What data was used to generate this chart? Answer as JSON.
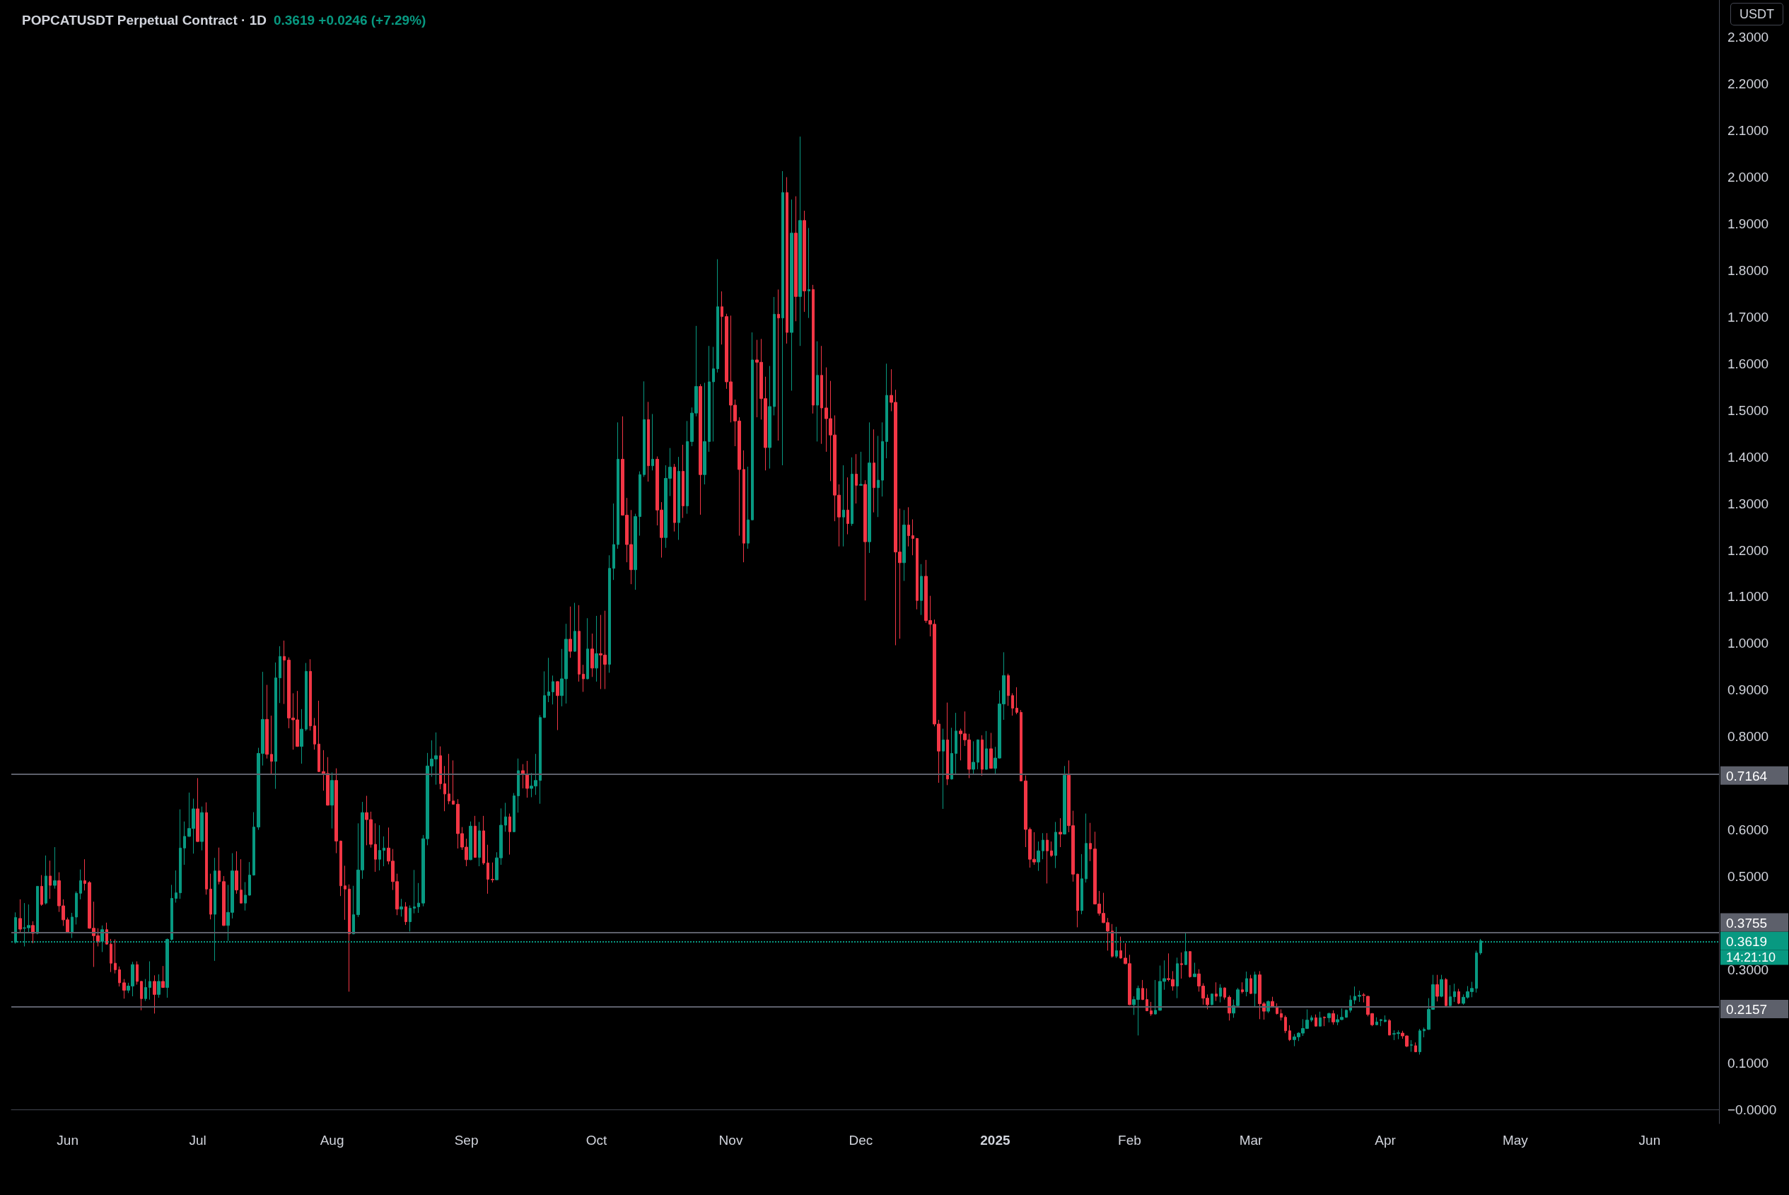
{
  "chart_data": {
    "type": "candlestick",
    "title": "POPCATUSDT Perpetual Contract · 1D",
    "subtitle": "0.3619 +0.0246 (+7.29%)",
    "ylabel": "USDT",
    "annotations": [
      "14:21:10"
    ],
    "xlim": [
      "2024-05-19",
      "2025-06-17"
    ],
    "xticks": [
      {
        "value": "2024-06-01",
        "label": "Jun"
      },
      {
        "value": "2024-07-01",
        "label": "Jul"
      },
      {
        "value": "2024-08-01",
        "label": "Aug"
      },
      {
        "value": "2024-09-01",
        "label": "Sep"
      },
      {
        "value": "2024-10-01",
        "label": "Oct"
      },
      {
        "value": "2024-11-01",
        "label": "Nov"
      },
      {
        "value": "2024-12-01",
        "label": "Dec"
      },
      {
        "value": "2025-01-01",
        "label": "2025"
      },
      {
        "value": "2025-02-01",
        "label": "Feb"
      },
      {
        "value": "2025-03-01",
        "label": "Mar"
      },
      {
        "value": "2025-04-01",
        "label": "Apr"
      },
      {
        "value": "2025-05-01",
        "label": "May"
      },
      {
        "value": "2025-06-01",
        "label": "Jun"
      }
    ],
    "ylim": [
      -0.03,
      2.38
    ],
    "yticks": [
      {
        "value": 0,
        "label": "−0.0000"
      },
      {
        "value": 0.1,
        "label": "0.1000"
      },
      {
        "value": 0.3,
        "label": "0.3000"
      },
      {
        "value": 0.5,
        "label": "0.5000"
      },
      {
        "value": 0.6,
        "label": "0.6000"
      },
      {
        "value": 0.8,
        "label": "0.8000"
      },
      {
        "value": 0.9,
        "label": "0.9000"
      },
      {
        "value": 1,
        "label": "1.0000"
      },
      {
        "value": 1.1,
        "label": "1.1000"
      },
      {
        "value": 1.2,
        "label": "1.2000"
      },
      {
        "value": 1.3,
        "label": "1.3000"
      },
      {
        "value": 1.4,
        "label": "1.4000"
      },
      {
        "value": 1.5,
        "label": "1.5000"
      },
      {
        "value": 1.6,
        "label": "1.6000"
      },
      {
        "value": 1.7,
        "label": "1.7000"
      },
      {
        "value": 1.8,
        "label": "1.8000"
      },
      {
        "value": 1.9,
        "label": "1.9000"
      },
      {
        "value": 2,
        "label": "2.0000"
      },
      {
        "value": 2.1,
        "label": "2.1000"
      },
      {
        "value": 2.2,
        "label": "2.2000"
      },
      {
        "value": 2.3,
        "label": "2.3000"
      }
    ],
    "ref_lines": [
      {
        "axis": "y",
        "value": 0.7164,
        "label": "0.7164",
        "color": "#5d606b",
        "line_style": "solid"
      },
      {
        "axis": "y",
        "value": 0.2157,
        "label": "0.2157",
        "color": "#5d606b",
        "line_style": "solid"
      },
      {
        "axis": "y",
        "value": 0.3755,
        "label": "0.3755",
        "color": "#5d606b",
        "line_style": "solid"
      },
      {
        "axis": "y",
        "value": 0.3619,
        "label": "0.3619",
        "color": "#089981",
        "line_style": "dotted"
      }
    ],
    "x": [
      "2024-05-20",
      "2024-05-21",
      "2024-05-22",
      "2024-05-23",
      "2024-05-24",
      "2024-05-25",
      "2024-05-26",
      "2024-05-27",
      "2024-05-28",
      "2024-05-29",
      "2024-05-30",
      "2024-05-31",
      "2024-06-01",
      "2024-06-02",
      "2024-06-03",
      "2024-06-04",
      "2024-06-05",
      "2024-06-06",
      "2024-06-07",
      "2024-06-08",
      "2024-06-09",
      "2024-06-10",
      "2024-06-11",
      "2024-06-12",
      "2024-06-13",
      "2024-06-14",
      "2024-06-15",
      "2024-06-16",
      "2024-06-17",
      "2024-06-18",
      "2024-06-19",
      "2024-06-20",
      "2024-06-21",
      "2024-06-22",
      "2024-06-23",
      "2024-06-24",
      "2024-06-25",
      "2024-06-26",
      "2024-06-27",
      "2024-06-28",
      "2024-06-29",
      "2024-06-30",
      "2024-07-01",
      "2024-07-02",
      "2024-07-03",
      "2024-07-04",
      "2024-07-05",
      "2024-07-06",
      "2024-07-07",
      "2024-07-08",
      "2024-07-09",
      "2024-07-10",
      "2024-07-11",
      "2024-07-12",
      "2024-07-13",
      "2024-07-14",
      "2024-07-15",
      "2024-07-16",
      "2024-07-17",
      "2024-07-18",
      "2024-07-19",
      "2024-07-20",
      "2024-07-21",
      "2024-07-22",
      "2024-07-23",
      "2024-07-24",
      "2024-07-25",
      "2024-07-26",
      "2024-07-27",
      "2024-07-28",
      "2024-07-29",
      "2024-07-30",
      "2024-07-31",
      "2024-08-01",
      "2024-08-02",
      "2024-08-03",
      "2024-08-04",
      "2024-08-05",
      "2024-08-06",
      "2024-08-07",
      "2024-08-08",
      "2024-08-09",
      "2024-08-10",
      "2024-08-11",
      "2024-08-12",
      "2024-08-13",
      "2024-08-14",
      "2024-08-15",
      "2024-08-16",
      "2024-08-17",
      "2024-08-18",
      "2024-08-19",
      "2024-08-20",
      "2024-08-21",
      "2024-08-22",
      "2024-08-23",
      "2024-08-24",
      "2024-08-25",
      "2024-08-26",
      "2024-08-27",
      "2024-08-28",
      "2024-08-29",
      "2024-08-30",
      "2024-08-31",
      "2024-09-01",
      "2024-09-02",
      "2024-09-03",
      "2024-09-04",
      "2024-09-05",
      "2024-09-06",
      "2024-09-07",
      "2024-09-08",
      "2024-09-09",
      "2024-09-10",
      "2024-09-11",
      "2024-09-12",
      "2024-09-13",
      "2024-09-14",
      "2024-09-15",
      "2024-09-16",
      "2024-09-17",
      "2024-09-18",
      "2024-09-19",
      "2024-09-20",
      "2024-09-21",
      "2024-09-22",
      "2024-09-23",
      "2024-09-24",
      "2024-09-25",
      "2024-09-26",
      "2024-09-27",
      "2024-09-28",
      "2024-09-29",
      "2024-09-30",
      "2024-10-01",
      "2024-10-02",
      "2024-10-03",
      "2024-10-04",
      "2024-10-05",
      "2024-10-06",
      "2024-10-07",
      "2024-10-08",
      "2024-10-09",
      "2024-10-10",
      "2024-10-11",
      "2024-10-12",
      "2024-10-13",
      "2024-10-14",
      "2024-10-15",
      "2024-10-16",
      "2024-10-17",
      "2024-10-18",
      "2024-10-19",
      "2024-10-20",
      "2024-10-21",
      "2024-10-22",
      "2024-10-23",
      "2024-10-24",
      "2024-10-25",
      "2024-10-26",
      "2024-10-27",
      "2024-10-28",
      "2024-10-29",
      "2024-10-30",
      "2024-10-31",
      "2024-11-01",
      "2024-11-02",
      "2024-11-03",
      "2024-11-04",
      "2024-11-05",
      "2024-11-06",
      "2024-11-07",
      "2024-11-08",
      "2024-11-09",
      "2024-11-10",
      "2024-11-11",
      "2024-11-12",
      "2024-11-13",
      "2024-11-14",
      "2024-11-15",
      "2024-11-16",
      "2024-11-17",
      "2024-11-18",
      "2024-11-19",
      "2024-11-20",
      "2024-11-21",
      "2024-11-22",
      "2024-11-23",
      "2024-11-24",
      "2024-11-25",
      "2024-11-26",
      "2024-11-27",
      "2024-11-28",
      "2024-11-29",
      "2024-11-30",
      "2024-12-01",
      "2024-12-02",
      "2024-12-03",
      "2024-12-04",
      "2024-12-05",
      "2024-12-06",
      "2024-12-07",
      "2024-12-08",
      "2024-12-09",
      "2024-12-10",
      "2024-12-11",
      "2024-12-12",
      "2024-12-13",
      "2024-12-14",
      "2024-12-15",
      "2024-12-16",
      "2024-12-17",
      "2024-12-18",
      "2024-12-19",
      "2024-12-20",
      "2024-12-21",
      "2024-12-22",
      "2024-12-23",
      "2024-12-24",
      "2024-12-25",
      "2024-12-26",
      "2024-12-27",
      "2024-12-28",
      "2024-12-29",
      "2024-12-30",
      "2024-12-31",
      "2025-01-01",
      "2025-01-02",
      "2025-01-03",
      "2025-01-04",
      "2025-01-05",
      "2025-01-06",
      "2025-01-07",
      "2025-01-08",
      "2025-01-09",
      "2025-01-10",
      "2025-01-11",
      "2025-01-12",
      "2025-01-13",
      "2025-01-14",
      "2025-01-15",
      "2025-01-16",
      "2025-01-17",
      "2025-01-18",
      "2025-01-19",
      "2025-01-20",
      "2025-01-21",
      "2025-01-22",
      "2025-01-23",
      "2025-01-24",
      "2025-01-25",
      "2025-01-26",
      "2025-01-27",
      "2025-01-28",
      "2025-01-29",
      "2025-01-30",
      "2025-01-31",
      "2025-02-01",
      "2025-02-02",
      "2025-02-03",
      "2025-02-04",
      "2025-02-05",
      "2025-02-06",
      "2025-02-07",
      "2025-02-08",
      "2025-02-09",
      "2025-02-10",
      "2025-02-11",
      "2025-02-12",
      "2025-02-13",
      "2025-02-14",
      "2025-02-15",
      "2025-02-16",
      "2025-02-17",
      "2025-02-18",
      "2025-02-19",
      "2025-02-20",
      "2025-02-21",
      "2025-02-22",
      "2025-02-23",
      "2025-02-24",
      "2025-02-25",
      "2025-02-26",
      "2025-02-27",
      "2025-02-28",
      "2025-03-01",
      "2025-03-02",
      "2025-03-03",
      "2025-03-04",
      "2025-03-05",
      "2025-03-06",
      "2025-03-07",
      "2025-03-08",
      "2025-03-09",
      "2025-03-10",
      "2025-03-11",
      "2025-03-12",
      "2025-03-13",
      "2025-03-14",
      "2025-03-15",
      "2025-03-16",
      "2025-03-17",
      "2025-03-18",
      "2025-03-19",
      "2025-03-20",
      "2025-03-21",
      "2025-03-22",
      "2025-03-23",
      "2025-03-24",
      "2025-03-25",
      "2025-03-26",
      "2025-03-27",
      "2025-03-28",
      "2025-03-29",
      "2025-03-30",
      "2025-03-31",
      "2025-04-01",
      "2025-04-02",
      "2025-04-03",
      "2025-04-04",
      "2025-04-05",
      "2025-04-06",
      "2025-04-07",
      "2025-04-08",
      "2025-04-09",
      "2025-04-10",
      "2025-04-11",
      "2025-04-12",
      "2025-04-13",
      "2025-04-14",
      "2025-04-15",
      "2025-04-16",
      "2025-04-17",
      "2025-04-18",
      "2025-04-19",
      "2025-04-20",
      "2025-04-21",
      "2025-04-22",
      "2025-04-23"
    ],
    "ohlc": [
      [
        0.359,
        0.423,
        0.356,
        0.412
      ],
      [
        0.41,
        0.451,
        0.378,
        0.387
      ],
      [
        0.389,
        0.443,
        0.35,
        0.39
      ],
      [
        0.39,
        0.44,
        0.378,
        0.395
      ],
      [
        0.395,
        0.404,
        0.357,
        0.378
      ],
      [
        0.378,
        0.479,
        0.376,
        0.479
      ],
      [
        0.479,
        0.503,
        0.437,
        0.44
      ],
      [
        0.443,
        0.545,
        0.44,
        0.501
      ],
      [
        0.501,
        0.534,
        0.452,
        0.481
      ],
      [
        0.481,
        0.563,
        0.474,
        0.491
      ],
      [
        0.491,
        0.509,
        0.424,
        0.437
      ],
      [
        0.437,
        0.451,
        0.394,
        0.407
      ],
      [
        0.407,
        0.412,
        0.379,
        0.38
      ],
      [
        0.38,
        0.422,
        0.368,
        0.413
      ],
      [
        0.413,
        0.468,
        0.397,
        0.464
      ],
      [
        0.464,
        0.515,
        0.451,
        0.491
      ],
      [
        0.491,
        0.537,
        0.47,
        0.485
      ],
      [
        0.487,
        0.49,
        0.388,
        0.389
      ],
      [
        0.389,
        0.446,
        0.306,
        0.373
      ],
      [
        0.373,
        0.389,
        0.35,
        0.361
      ],
      [
        0.361,
        0.395,
        0.338,
        0.386
      ],
      [
        0.386,
        0.401,
        0.354,
        0.355
      ],
      [
        0.355,
        0.366,
        0.295,
        0.314
      ],
      [
        0.314,
        0.365,
        0.292,
        0.3
      ],
      [
        0.3,
        0.307,
        0.264,
        0.272
      ],
      [
        0.272,
        0.28,
        0.238,
        0.256
      ],
      [
        0.256,
        0.272,
        0.25,
        0.265
      ],
      [
        0.265,
        0.317,
        0.243,
        0.311
      ],
      [
        0.311,
        0.318,
        0.268,
        0.275
      ],
      [
        0.275,
        0.276,
        0.213,
        0.238
      ],
      [
        0.238,
        0.28,
        0.233,
        0.262
      ],
      [
        0.262,
        0.318,
        0.236,
        0.275
      ],
      [
        0.275,
        0.288,
        0.206,
        0.247
      ],
      [
        0.247,
        0.29,
        0.24,
        0.275
      ],
      [
        0.275,
        0.308,
        0.261,
        0.262
      ],
      [
        0.262,
        0.367,
        0.24,
        0.365
      ],
      [
        0.365,
        0.482,
        0.363,
        0.453
      ],
      [
        0.453,
        0.513,
        0.444,
        0.465
      ],
      [
        0.465,
        0.644,
        0.452,
        0.561
      ],
      [
        0.561,
        0.618,
        0.525,
        0.586
      ],
      [
        0.586,
        0.68,
        0.585,
        0.603
      ],
      [
        0.603,
        0.667,
        0.549,
        0.645
      ],
      [
        0.645,
        0.711,
        0.574,
        0.575
      ],
      [
        0.575,
        0.65,
        0.556,
        0.637
      ],
      [
        0.637,
        0.659,
        0.461,
        0.473
      ],
      [
        0.473,
        0.506,
        0.408,
        0.419
      ],
      [
        0.419,
        0.54,
        0.319,
        0.512
      ],
      [
        0.512,
        0.562,
        0.483,
        0.489
      ],
      [
        0.489,
        0.501,
        0.394,
        0.395
      ],
      [
        0.395,
        0.482,
        0.362,
        0.423
      ],
      [
        0.423,
        0.55,
        0.41,
        0.512
      ],
      [
        0.512,
        0.554,
        0.463,
        0.471
      ],
      [
        0.471,
        0.537,
        0.442,
        0.443
      ],
      [
        0.443,
        0.488,
        0.427,
        0.46
      ],
      [
        0.46,
        0.531,
        0.459,
        0.503
      ],
      [
        0.503,
        0.638,
        0.502,
        0.606
      ],
      [
        0.606,
        0.776,
        0.6,
        0.764
      ],
      [
        0.764,
        0.939,
        0.738,
        0.837
      ],
      [
        0.837,
        0.911,
        0.753,
        0.762
      ],
      [
        0.762,
        0.845,
        0.718,
        0.747
      ],
      [
        0.747,
        0.959,
        0.688,
        0.926
      ],
      [
        0.926,
        0.994,
        0.872,
        0.972
      ],
      [
        0.972,
        1.006,
        0.87,
        0.964
      ],
      [
        0.964,
        0.97,
        0.818,
        0.84
      ],
      [
        0.84,
        0.893,
        0.772,
        0.836
      ],
      [
        0.836,
        0.898,
        0.778,
        0.779
      ],
      [
        0.779,
        0.859,
        0.742,
        0.816
      ],
      [
        0.816,
        0.958,
        0.812,
        0.94
      ],
      [
        0.94,
        0.966,
        0.813,
        0.823
      ],
      [
        0.823,
        0.84,
        0.772,
        0.784
      ],
      [
        0.784,
        0.877,
        0.724,
        0.725
      ],
      [
        0.725,
        0.771,
        0.684,
        0.721
      ],
      [
        0.721,
        0.756,
        0.652,
        0.653
      ],
      [
        0.653,
        0.723,
        0.603,
        0.706
      ],
      [
        0.706,
        0.732,
        0.55,
        0.576
      ],
      [
        0.576,
        0.577,
        0.458,
        0.48
      ],
      [
        0.48,
        0.523,
        0.407,
        0.473
      ],
      [
        0.473,
        0.483,
        0.253,
        0.377
      ],
      [
        0.377,
        0.48,
        0.376,
        0.418
      ],
      [
        0.418,
        0.614,
        0.413,
        0.514
      ],
      [
        0.514,
        0.66,
        0.495,
        0.637
      ],
      [
        0.637,
        0.673,
        0.567,
        0.622
      ],
      [
        0.622,
        0.639,
        0.562,
        0.569
      ],
      [
        0.569,
        0.614,
        0.51,
        0.537
      ],
      [
        0.537,
        0.61,
        0.513,
        0.556
      ],
      [
        0.556,
        0.586,
        0.522,
        0.561
      ],
      [
        0.561,
        0.605,
        0.526,
        0.533
      ],
      [
        0.533,
        0.559,
        0.471,
        0.489
      ],
      [
        0.489,
        0.506,
        0.417,
        0.43
      ],
      [
        0.43,
        0.452,
        0.414,
        0.435
      ],
      [
        0.435,
        0.445,
        0.396,
        0.403
      ],
      [
        0.403,
        0.438,
        0.382,
        0.432
      ],
      [
        0.432,
        0.514,
        0.421,
        0.435
      ],
      [
        0.435,
        0.486,
        0.422,
        0.443
      ],
      [
        0.443,
        0.589,
        0.436,
        0.581
      ],
      [
        0.581,
        0.765,
        0.567,
        0.737
      ],
      [
        0.737,
        0.792,
        0.714,
        0.752
      ],
      [
        0.752,
        0.809,
        0.697,
        0.759
      ],
      [
        0.759,
        0.779,
        0.687,
        0.699
      ],
      [
        0.699,
        0.737,
        0.64,
        0.677
      ],
      [
        0.677,
        0.763,
        0.655,
        0.662
      ],
      [
        0.662,
        0.749,
        0.654,
        0.655
      ],
      [
        0.655,
        0.666,
        0.56,
        0.592
      ],
      [
        0.592,
        0.606,
        0.557,
        0.563
      ],
      [
        0.563,
        0.581,
        0.522,
        0.536
      ],
      [
        0.536,
        0.618,
        0.535,
        0.608
      ],
      [
        0.608,
        0.63,
        0.54,
        0.541
      ],
      [
        0.541,
        0.617,
        0.522,
        0.598
      ],
      [
        0.598,
        0.63,
        0.525,
        0.529
      ],
      [
        0.529,
        0.568,
        0.463,
        0.494
      ],
      [
        0.494,
        0.53,
        0.487,
        0.493
      ],
      [
        0.493,
        0.552,
        0.492,
        0.54
      ],
      [
        0.54,
        0.646,
        0.525,
        0.61
      ],
      [
        0.61,
        0.658,
        0.596,
        0.628
      ],
      [
        0.628,
        0.635,
        0.547,
        0.596
      ],
      [
        0.596,
        0.679,
        0.595,
        0.673
      ],
      [
        0.673,
        0.753,
        0.637,
        0.727
      ],
      [
        0.727,
        0.741,
        0.689,
        0.72
      ],
      [
        0.72,
        0.748,
        0.669,
        0.689
      ],
      [
        0.689,
        0.722,
        0.67,
        0.694
      ],
      [
        0.694,
        0.763,
        0.675,
        0.706
      ],
      [
        0.706,
        0.846,
        0.656,
        0.841
      ],
      [
        0.841,
        0.94,
        0.84,
        0.888
      ],
      [
        0.888,
        0.969,
        0.874,
        0.896
      ],
      [
        0.896,
        0.931,
        0.869,
        0.918
      ],
      [
        0.918,
        0.919,
        0.814,
        0.888
      ],
      [
        0.888,
        0.988,
        0.865,
        0.924
      ],
      [
        0.924,
        1.042,
        0.871,
        1.009
      ],
      [
        1.009,
        1.079,
        0.969,
        0.983
      ],
      [
        0.983,
        1.087,
        0.982,
        1.026
      ],
      [
        1.026,
        1.082,
        0.918,
        0.934
      ],
      [
        0.934,
        0.954,
        0.896,
        0.924
      ],
      [
        0.924,
        1.054,
        0.923,
        0.988
      ],
      [
        0.988,
        1.021,
        0.928,
        0.947
      ],
      [
        0.947,
        1.059,
        0.918,
        0.978
      ],
      [
        0.978,
        1.061,
        0.902,
        0.975
      ],
      [
        0.975,
        1.07,
        0.902,
        0.955
      ],
      [
        0.955,
        1.189,
        0.937,
        1.161
      ],
      [
        1.161,
        1.3,
        1.136,
        1.212
      ],
      [
        1.212,
        1.474,
        1.203,
        1.395
      ],
      [
        1.395,
        1.487,
        1.274,
        1.275
      ],
      [
        1.275,
        1.312,
        1.174,
        1.212
      ],
      [
        1.212,
        1.286,
        1.127,
        1.158
      ],
      [
        1.158,
        1.278,
        1.115,
        1.272
      ],
      [
        1.272,
        1.369,
        1.231,
        1.362
      ],
      [
        1.362,
        1.562,
        1.357,
        1.48
      ],
      [
        1.48,
        1.518,
        1.347,
        1.381
      ],
      [
        1.381,
        1.492,
        1.371,
        1.395
      ],
      [
        1.395,
        1.401,
        1.253,
        1.286
      ],
      [
        1.286,
        1.303,
        1.184,
        1.227
      ],
      [
        1.227,
        1.382,
        1.205,
        1.354
      ],
      [
        1.354,
        1.419,
        1.316,
        1.378
      ],
      [
        1.378,
        1.385,
        1.24,
        1.259
      ],
      [
        1.259,
        1.4,
        1.222,
        1.369
      ],
      [
        1.369,
        1.426,
        1.269,
        1.295
      ],
      [
        1.295,
        1.477,
        1.278,
        1.433
      ],
      [
        1.433,
        1.506,
        1.423,
        1.494
      ],
      [
        1.494,
        1.681,
        1.487,
        1.551
      ],
      [
        1.551,
        1.556,
        1.276,
        1.362
      ],
      [
        1.362,
        1.559,
        1.341,
        1.433
      ],
      [
        1.433,
        1.638,
        1.411,
        1.561
      ],
      [
        1.561,
        1.636,
        1.433,
        1.589
      ],
      [
        1.589,
        1.824,
        1.581,
        1.722
      ],
      [
        1.722,
        1.755,
        1.641,
        1.701
      ],
      [
        1.701,
        1.707,
        1.546,
        1.561
      ],
      [
        1.561,
        1.703,
        1.474,
        1.511
      ],
      [
        1.511,
        1.523,
        1.423,
        1.477
      ],
      [
        1.477,
        1.485,
        1.231,
        1.373
      ],
      [
        1.373,
        1.414,
        1.174,
        1.215
      ],
      [
        1.215,
        1.379,
        1.203,
        1.265
      ],
      [
        1.265,
        1.667,
        1.264,
        1.608
      ],
      [
        1.608,
        1.651,
        1.485,
        1.603
      ],
      [
        1.603,
        1.653,
        1.48,
        1.525
      ],
      [
        1.525,
        1.572,
        1.371,
        1.42
      ],
      [
        1.42,
        1.595,
        1.375,
        1.508
      ],
      [
        1.508,
        1.743,
        1.489,
        1.706
      ],
      [
        1.706,
        1.759,
        1.435,
        1.698
      ],
      [
        1.698,
        2.013,
        1.382,
        1.967
      ],
      [
        1.967,
        2.0,
        1.643,
        1.667
      ],
      [
        1.667,
        1.952,
        1.542,
        1.88
      ],
      [
        1.88,
        1.959,
        1.691,
        1.744
      ],
      [
        1.744,
        2.087,
        1.638,
        1.907
      ],
      [
        1.907,
        1.928,
        1.711,
        1.756
      ],
      [
        1.756,
        1.891,
        1.698,
        1.759
      ],
      [
        1.759,
        1.769,
        1.493,
        1.511
      ],
      [
        1.511,
        1.648,
        1.433,
        1.575
      ],
      [
        1.575,
        1.638,
        1.428,
        1.505
      ],
      [
        1.505,
        1.592,
        1.411,
        1.482
      ],
      [
        1.482,
        1.563,
        1.348,
        1.447
      ],
      [
        1.447,
        1.489,
        1.262,
        1.318
      ],
      [
        1.318,
        1.341,
        1.208,
        1.271
      ],
      [
        1.271,
        1.382,
        1.208,
        1.286
      ],
      [
        1.286,
        1.356,
        1.234,
        1.257
      ],
      [
        1.257,
        1.399,
        1.252,
        1.363
      ],
      [
        1.363,
        1.406,
        1.3,
        1.339
      ],
      [
        1.339,
        1.411,
        1.339,
        1.341
      ],
      [
        1.341,
        1.35,
        1.092,
        1.218
      ],
      [
        1.218,
        1.474,
        1.194,
        1.387
      ],
      [
        1.387,
        1.459,
        1.281,
        1.334
      ],
      [
        1.334,
        1.445,
        1.271,
        1.35
      ],
      [
        1.35,
        1.474,
        1.315,
        1.433
      ],
      [
        1.433,
        1.6,
        1.397,
        1.532
      ],
      [
        1.532,
        1.588,
        1.498,
        1.517
      ],
      [
        1.517,
        1.544,
        0.996,
        1.196
      ],
      [
        1.196,
        1.289,
        1.01,
        1.173
      ],
      [
        1.173,
        1.286,
        1.134,
        1.254
      ],
      [
        1.254,
        1.292,
        1.208,
        1.231
      ],
      [
        1.231,
        1.266,
        1.189,
        1.225
      ],
      [
        1.225,
        1.226,
        1.073,
        1.092
      ],
      [
        1.092,
        1.17,
        1.061,
        1.144
      ],
      [
        1.144,
        1.179,
        1.044,
        1.049
      ],
      [
        1.049,
        1.102,
        1.015,
        1.041
      ],
      [
        1.041,
        1.051,
        0.822,
        0.827
      ],
      [
        0.827,
        0.836,
        0.701,
        0.769
      ],
      [
        0.769,
        0.817,
        0.645,
        0.793
      ],
      [
        0.793,
        0.873,
        0.696,
        0.709
      ],
      [
        0.709,
        0.819,
        0.708,
        0.764
      ],
      [
        0.764,
        0.851,
        0.72,
        0.812
      ],
      [
        0.812,
        0.817,
        0.749,
        0.806
      ],
      [
        0.806,
        0.854,
        0.78,
        0.793
      ],
      [
        0.793,
        0.806,
        0.711,
        0.73
      ],
      [
        0.73,
        0.79,
        0.72,
        0.745
      ],
      [
        0.745,
        0.794,
        0.73,
        0.793
      ],
      [
        0.793,
        0.803,
        0.716,
        0.73
      ],
      [
        0.73,
        0.812,
        0.729,
        0.774
      ],
      [
        0.774,
        0.808,
        0.731,
        0.732
      ],
      [
        0.732,
        0.778,
        0.72,
        0.754
      ],
      [
        0.754,
        0.899,
        0.753,
        0.87
      ],
      [
        0.87,
        0.981,
        0.836,
        0.931
      ],
      [
        0.931,
        0.935,
        0.866,
        0.888
      ],
      [
        0.888,
        0.893,
        0.845,
        0.861
      ],
      [
        0.861,
        0.906,
        0.848,
        0.852
      ],
      [
        0.852,
        0.857,
        0.704,
        0.705
      ],
      [
        0.705,
        0.717,
        0.563,
        0.601
      ],
      [
        0.601,
        0.605,
        0.519,
        0.537
      ],
      [
        0.537,
        0.595,
        0.525,
        0.531
      ],
      [
        0.531,
        0.575,
        0.512,
        0.555
      ],
      [
        0.555,
        0.593,
        0.537,
        0.578
      ],
      [
        0.578,
        0.593,
        0.485,
        0.555
      ],
      [
        0.555,
        0.575,
        0.542,
        0.545
      ],
      [
        0.545,
        0.617,
        0.518,
        0.595
      ],
      [
        0.595,
        0.625,
        0.563,
        0.591
      ],
      [
        0.591,
        0.737,
        0.59,
        0.717
      ],
      [
        0.717,
        0.749,
        0.595,
        0.609
      ],
      [
        0.609,
        0.641,
        0.489,
        0.505
      ],
      [
        0.505,
        0.506,
        0.391,
        0.427
      ],
      [
        0.427,
        0.548,
        0.419,
        0.495
      ],
      [
        0.495,
        0.635,
        0.487,
        0.571
      ],
      [
        0.571,
        0.615,
        0.533,
        0.559
      ],
      [
        0.559,
        0.596,
        0.44,
        0.441
      ],
      [
        0.441,
        0.469,
        0.416,
        0.421
      ],
      [
        0.421,
        0.465,
        0.4,
        0.401
      ],
      [
        0.401,
        0.411,
        0.341,
        0.383
      ],
      [
        0.383,
        0.398,
        0.326,
        0.329
      ],
      [
        0.329,
        0.392,
        0.325,
        0.341
      ],
      [
        0.341,
        0.371,
        0.324,
        0.325
      ],
      [
        0.325,
        0.357,
        0.312,
        0.313
      ],
      [
        0.313,
        0.332,
        0.224,
        0.225
      ],
      [
        0.225,
        0.243,
        0.203,
        0.236
      ],
      [
        0.236,
        0.266,
        0.159,
        0.26
      ],
      [
        0.26,
        0.278,
        0.235,
        0.236
      ],
      [
        0.236,
        0.26,
        0.211,
        0.212
      ],
      [
        0.212,
        0.231,
        0.201,
        0.205
      ],
      [
        0.205,
        0.278,
        0.204,
        0.213
      ],
      [
        0.213,
        0.309,
        0.212,
        0.275
      ],
      [
        0.275,
        0.32,
        0.257,
        0.281
      ],
      [
        0.281,
        0.335,
        0.275,
        0.279
      ],
      [
        0.279,
        0.297,
        0.255,
        0.265
      ],
      [
        0.265,
        0.326,
        0.239,
        0.313
      ],
      [
        0.313,
        0.337,
        0.281,
        0.311
      ],
      [
        0.311,
        0.379,
        0.31,
        0.339
      ],
      [
        0.339,
        0.34,
        0.283,
        0.285
      ],
      [
        0.285,
        0.315,
        0.284,
        0.291
      ],
      [
        0.291,
        0.301,
        0.253,
        0.265
      ],
      [
        0.265,
        0.271,
        0.225,
        0.239
      ],
      [
        0.239,
        0.247,
        0.215,
        0.225
      ],
      [
        0.225,
        0.249,
        0.224,
        0.248
      ],
      [
        0.248,
        0.273,
        0.233,
        0.243
      ],
      [
        0.243,
        0.269,
        0.23,
        0.261
      ],
      [
        0.261,
        0.262,
        0.236,
        0.241
      ],
      [
        0.241,
        0.245,
        0.191,
        0.207
      ],
      [
        0.207,
        0.236,
        0.197,
        0.223
      ],
      [
        0.223,
        0.261,
        0.222,
        0.257
      ],
      [
        0.257,
        0.273,
        0.249,
        0.253
      ],
      [
        0.253,
        0.296,
        0.243,
        0.281
      ],
      [
        0.281,
        0.289,
        0.248,
        0.249
      ],
      [
        0.249,
        0.296,
        0.221,
        0.289
      ],
      [
        0.289,
        0.297,
        0.194,
        0.227
      ],
      [
        0.227,
        0.231,
        0.193,
        0.211
      ],
      [
        0.211,
        0.234,
        0.207,
        0.232
      ],
      [
        0.232,
        0.242,
        0.219,
        0.22
      ],
      [
        0.22,
        0.228,
        0.204,
        0.206
      ],
      [
        0.206,
        0.215,
        0.191,
        0.198
      ],
      [
        0.198,
        0.202,
        0.164,
        0.169
      ],
      [
        0.169,
        0.181,
        0.147,
        0.15
      ],
      [
        0.15,
        0.162,
        0.136,
        0.156
      ],
      [
        0.156,
        0.166,
        0.147,
        0.164
      ],
      [
        0.164,
        0.194,
        0.158,
        0.174
      ],
      [
        0.174,
        0.215,
        0.173,
        0.192
      ],
      [
        0.192,
        0.202,
        0.188,
        0.197
      ],
      [
        0.197,
        0.204,
        0.178,
        0.179
      ],
      [
        0.179,
        0.21,
        0.178,
        0.197
      ],
      [
        0.198,
        0.2,
        0.179,
        0.197
      ],
      [
        0.197,
        0.208,
        0.187,
        0.206
      ],
      [
        0.206,
        0.213,
        0.182,
        0.188
      ],
      [
        0.188,
        0.204,
        0.181,
        0.193
      ],
      [
        0.193,
        0.217,
        0.192,
        0.198
      ],
      [
        0.198,
        0.215,
        0.197,
        0.213
      ],
      [
        0.213,
        0.245,
        0.208,
        0.235
      ],
      [
        0.235,
        0.264,
        0.226,
        0.243
      ],
      [
        0.243,
        0.255,
        0.231,
        0.245
      ],
      [
        0.246,
        0.25,
        0.23,
        0.245
      ],
      [
        0.243,
        0.244,
        0.2,
        0.204
      ],
      [
        0.206,
        0.207,
        0.179,
        0.182
      ],
      [
        0.182,
        0.198,
        0.181,
        0.188
      ],
      [
        0.191,
        0.194,
        0.179,
        0.193
      ],
      [
        0.189,
        0.202,
        0.187,
        0.192
      ],
      [
        0.191,
        0.194,
        0.159,
        0.16
      ],
      [
        0.162,
        0.17,
        0.149,
        0.163
      ],
      [
        0.163,
        0.17,
        0.151,
        0.165
      ],
      [
        0.164,
        0.169,
        0.152,
        0.158
      ],
      [
        0.158,
        0.159,
        0.134,
        0.136
      ],
      [
        0.138,
        0.149,
        0.124,
        0.139
      ],
      [
        0.137,
        0.144,
        0.123,
        0.124
      ],
      [
        0.124,
        0.173,
        0.118,
        0.169
      ],
      [
        0.169,
        0.176,
        0.155,
        0.172
      ],
      [
        0.172,
        0.239,
        0.171,
        0.215
      ],
      [
        0.215,
        0.289,
        0.214,
        0.268
      ],
      [
        0.268,
        0.289,
        0.232,
        0.243
      ],
      [
        0.243,
        0.289,
        0.241,
        0.279
      ],
      [
        0.279,
        0.282,
        0.222,
        0.223
      ],
      [
        0.223,
        0.267,
        0.22,
        0.242
      ],
      [
        0.242,
        0.27,
        0.231,
        0.253
      ],
      [
        0.253,
        0.259,
        0.226,
        0.228
      ],
      [
        0.228,
        0.247,
        0.225,
        0.241
      ],
      [
        0.241,
        0.265,
        0.238,
        0.253
      ],
      [
        0.253,
        0.274,
        0.241,
        0.26
      ],
      [
        0.26,
        0.341,
        0.251,
        0.336
      ],
      [
        0.336,
        0.366,
        0.332,
        0.3619
      ]
    ]
  }
}
